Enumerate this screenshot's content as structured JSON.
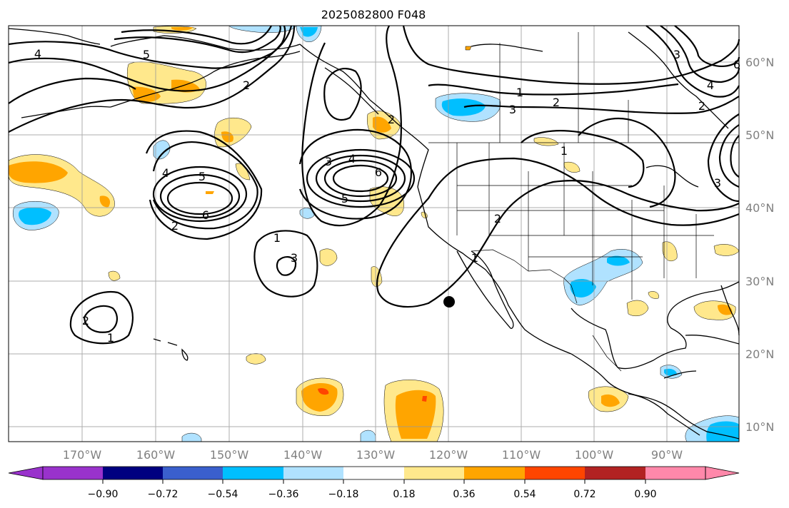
{
  "title": "2025082800 F048",
  "colors": {
    "neg_090": "#9932CC",
    "neg_072": "#000080",
    "neg_054": "#3A5FCD",
    "neg_036": "#00BFFF",
    "neg_018": "#B0E2FF",
    "zero": "#FFFFFF",
    "pos_018": "#FFE88C",
    "pos_036": "#FFA500",
    "pos_054": "#FF4500",
    "pos_072": "#B22222",
    "pos_090": "#FF88AA"
  },
  "longitude_labels": [
    "170°W",
    "160°W",
    "150°W",
    "140°W",
    "130°W",
    "120°W",
    "110°W",
    "100°W",
    "90°W"
  ],
  "latitude_labels": [
    "60°N",
    "50°N",
    "40°N",
    "30°N",
    "20°N",
    "10°N"
  ],
  "colorbar_ticks": [
    "−0.90",
    "−0.72",
    "−0.54",
    "−0.36",
    "−0.18",
    "0.18",
    "0.36",
    "0.54",
    "0.72",
    "0.90"
  ],
  "contour_labels": {
    "l1": "4",
    "l2": "5",
    "l3": "2",
    "l4": "1",
    "l5": "3",
    "l6": "2",
    "l7": "6",
    "l8": "4",
    "l9": "5",
    "l10": "6",
    "l11": "2",
    "l12": "3",
    "l13": "4",
    "l14": "5",
    "l15": "1",
    "l16": "2",
    "l17": "2",
    "l18": "1",
    "l19": "1",
    "l20": "3",
    "l21": "1",
    "l22": "2",
    "l23": "3",
    "l24": "4",
    "l25": "2",
    "l26": "6",
    "l27": "3"
  },
  "marker": "black dot near 27°N 120°W"
}
